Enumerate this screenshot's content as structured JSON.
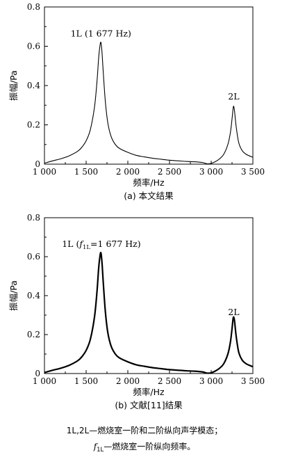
{
  "chart_data": [
    {
      "type": "line",
      "panel_caption": "(a) 本文结果",
      "xlabel": "频率/Hz",
      "ylabel": "振幅/Pa",
      "xlim": [
        1000,
        3500
      ],
      "ylim": [
        0,
        0.8
      ],
      "xticks": [
        1000,
        1500,
        2000,
        2500,
        3000,
        3500
      ],
      "xtick_labels": [
        "1 000",
        "1 500",
        "2 000",
        "2 500",
        "3 000",
        "3 500"
      ],
      "yticks": [
        0,
        0.2,
        0.4,
        0.6,
        0.8
      ],
      "ytick_labels": [
        "0",
        "0.2",
        "0.4",
        "0.6",
        "0.8"
      ],
      "annotations": [
        {
          "text": "1L (1 677 Hz)",
          "x": 1677,
          "y": 0.65
        },
        {
          "text": "2L",
          "x": 3270,
          "y": 0.33
        }
      ],
      "series": [
        {
          "x": [
            1000,
            1100,
            1200,
            1300,
            1400,
            1450,
            1500,
            1550,
            1600,
            1630,
            1650,
            1665,
            1677,
            1690,
            1705,
            1730,
            1760,
            1800,
            1850,
            1900,
            2000,
            2100,
            2200,
            2300,
            2400,
            2500,
            2600,
            2700,
            2800,
            2900,
            2950,
            3000,
            3050,
            3100,
            3150,
            3200,
            3230,
            3250,
            3262,
            3270,
            3280,
            3300,
            3330,
            3370,
            3420,
            3500
          ],
          "y": [
            0.005,
            0.017,
            0.028,
            0.043,
            0.066,
            0.087,
            0.119,
            0.175,
            0.29,
            0.42,
            0.54,
            0.6,
            0.62,
            0.57,
            0.47,
            0.32,
            0.21,
            0.14,
            0.1,
            0.08,
            0.06,
            0.045,
            0.037,
            0.03,
            0.025,
            0.02,
            0.017,
            0.014,
            0.012,
            0.008,
            0.002,
            0.004,
            0.013,
            0.027,
            0.05,
            0.1,
            0.16,
            0.23,
            0.28,
            0.295,
            0.27,
            0.19,
            0.11,
            0.07,
            0.05,
            0.035
          ]
        }
      ]
    },
    {
      "type": "line",
      "panel_caption": "(b) 文献[11]结果",
      "xlabel": "频率/Hz",
      "ylabel": "振幅/Pa",
      "xlim": [
        1000,
        3500
      ],
      "ylim": [
        0,
        0.8
      ],
      "xticks": [
        1000,
        1500,
        2000,
        2500,
        3000,
        3500
      ],
      "xtick_labels": [
        "1 000",
        "1 500",
        "2 000",
        "2 500",
        "3 000",
        "3 500"
      ],
      "yticks": [
        0,
        0.2,
        0.4,
        0.6,
        0.8
      ],
      "ytick_labels": [
        "0",
        "0.2",
        "0.4",
        "0.6",
        "0.8"
      ],
      "annotations": [
        {
          "text_prefix": "1L (",
          "symbol": "f",
          "subscript": "1L",
          "text_suffix": "=1 677 Hz)",
          "x": 1677,
          "y": 0.65
        },
        {
          "text": "2L",
          "x": 3270,
          "y": 0.3
        }
      ],
      "series": [
        {
          "x": [
            1000,
            1100,
            1200,
            1300,
            1400,
            1450,
            1500,
            1550,
            1600,
            1630,
            1650,
            1665,
            1677,
            1690,
            1705,
            1730,
            1760,
            1800,
            1850,
            1900,
            2000,
            2100,
            2200,
            2300,
            2400,
            2500,
            2600,
            2700,
            2800,
            2900,
            2950,
            3000,
            3050,
            3100,
            3150,
            3200,
            3230,
            3250,
            3262,
            3270,
            3280,
            3300,
            3330,
            3370,
            3420,
            3500
          ],
          "y": [
            0.005,
            0.017,
            0.028,
            0.043,
            0.066,
            0.087,
            0.119,
            0.175,
            0.29,
            0.42,
            0.54,
            0.6,
            0.62,
            0.57,
            0.47,
            0.32,
            0.21,
            0.14,
            0.1,
            0.08,
            0.06,
            0.045,
            0.037,
            0.03,
            0.025,
            0.02,
            0.017,
            0.014,
            0.012,
            0.008,
            0.002,
            0.004,
            0.013,
            0.027,
            0.05,
            0.1,
            0.16,
            0.23,
            0.28,
            0.29,
            0.27,
            0.19,
            0.11,
            0.07,
            0.05,
            0.035
          ]
        }
      ]
    }
  ],
  "notes": {
    "line1": "1L,2L—燃烧室一阶和二阶纵向声学模态；",
    "line2_symbol": "f",
    "line2_sub": "1L",
    "line2_text": "—燃烧室一阶纵向频率。"
  }
}
